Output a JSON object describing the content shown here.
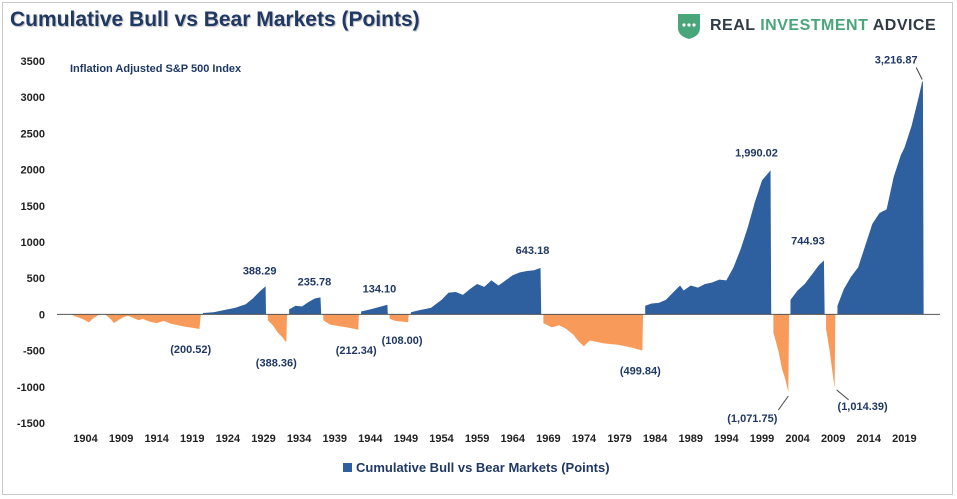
{
  "title": "Cumulative Bull vs Bear Markets (Points)",
  "brand": {
    "logo_icon": "shield-logo-icon",
    "word1": "REAL",
    "word2": "INVESTMENT",
    "word3": "ADVICE",
    "colors": {
      "dark": "#2f3b45",
      "green": "#49a57a"
    }
  },
  "legend": {
    "label": "Cumulative Bull vs Bear Markets (Points)"
  },
  "colors": {
    "bull": "#2e5f9e",
    "bear": "#f79a5a",
    "title": "#1f3864"
  },
  "chart_data": {
    "type": "area",
    "title": "Cumulative Bull vs Bear Markets (Points)",
    "subtitle": "Inflation Adjusted S&P 500 Index",
    "xlabel": "",
    "ylabel": "",
    "ylim": [
      -1500,
      3500
    ],
    "xlim": [
      1900,
      2024
    ],
    "yticks": [
      -1500,
      -1000,
      -500,
      0,
      500,
      1000,
      1500,
      2000,
      2500,
      3000,
      3500
    ],
    "xticks": [
      1904,
      1909,
      1914,
      1919,
      1924,
      1929,
      1934,
      1939,
      1944,
      1949,
      1954,
      1959,
      1964,
      1969,
      1974,
      1979,
      1984,
      1989,
      1994,
      1999,
      2004,
      2009,
      2014,
      2019
    ],
    "grid": false,
    "legend_position": "bottom",
    "series": [
      {
        "name": "Cumulative Bull vs Bear Markets (Points)",
        "points": [
          [
            1900.0,
            0
          ],
          [
            1902.0,
            0
          ],
          [
            1902.4,
            -20
          ],
          [
            1903.5,
            -60
          ],
          [
            1904.5,
            -110
          ],
          [
            1905.0,
            -60
          ],
          [
            1905.8,
            -10
          ],
          [
            1906.5,
            0
          ],
          [
            1906.8,
            -5
          ],
          [
            1907.5,
            -60
          ],
          [
            1908.0,
            -120
          ],
          [
            1908.6,
            -80
          ],
          [
            1909.3,
            -40
          ],
          [
            1910.0,
            -20
          ],
          [
            1910.7,
            -50
          ],
          [
            1911.5,
            -80
          ],
          [
            1912.0,
            -60
          ],
          [
            1913.0,
            -100
          ],
          [
            1914.0,
            -120
          ],
          [
            1915.0,
            -90
          ],
          [
            1916.0,
            -130
          ],
          [
            1917.0,
            -150
          ],
          [
            1918.0,
            -170
          ],
          [
            1919.0,
            -185
          ],
          [
            1919.9,
            -200.52
          ],
          [
            1920.0,
            -200.52
          ],
          [
            1920.2,
            0
          ],
          [
            1920.5,
            20
          ],
          [
            1922.0,
            30
          ],
          [
            1923.5,
            60
          ],
          [
            1925.0,
            90
          ],
          [
            1926.5,
            140
          ],
          [
            1927.5,
            220
          ],
          [
            1928.5,
            320
          ],
          [
            1929.3,
            388.29
          ],
          [
            1929.35,
            0
          ],
          [
            1929.6,
            -80
          ],
          [
            1930.3,
            -150
          ],
          [
            1931.0,
            -250
          ],
          [
            1931.6,
            -310
          ],
          [
            1932.2,
            -388.36
          ],
          [
            1932.3,
            0
          ],
          [
            1932.6,
            70
          ],
          [
            1933.5,
            120
          ],
          [
            1934.4,
            110
          ],
          [
            1935.3,
            170
          ],
          [
            1936.2,
            220
          ],
          [
            1937.0,
            235.78
          ],
          [
            1937.1,
            0
          ],
          [
            1937.4,
            -80
          ],
          [
            1938.3,
            -140
          ],
          [
            1939.5,
            -160
          ],
          [
            1940.7,
            -180
          ],
          [
            1941.8,
            -200
          ],
          [
            1942.3,
            -212.34
          ],
          [
            1942.4,
            0
          ],
          [
            1942.7,
            40
          ],
          [
            1944.0,
            70
          ],
          [
            1945.5,
            110
          ],
          [
            1946.4,
            134.1
          ],
          [
            1946.45,
            0
          ],
          [
            1946.7,
            -60
          ],
          [
            1947.5,
            -90
          ],
          [
            1948.5,
            -100
          ],
          [
            1949.3,
            -108
          ],
          [
            1949.4,
            0
          ],
          [
            1949.7,
            30
          ],
          [
            1951.0,
            60
          ],
          [
            1952.5,
            90
          ],
          [
            1954.0,
            200
          ],
          [
            1955.0,
            300
          ],
          [
            1956.0,
            310
          ],
          [
            1957.0,
            270
          ],
          [
            1958.0,
            350
          ],
          [
            1959.0,
            420
          ],
          [
            1960.0,
            380
          ],
          [
            1961.0,
            470
          ],
          [
            1962.0,
            400
          ],
          [
            1963.0,
            470
          ],
          [
            1964.0,
            540
          ],
          [
            1965.0,
            580
          ],
          [
            1966.0,
            600
          ],
          [
            1967.0,
            610
          ],
          [
            1967.9,
            643.18
          ],
          [
            1968.0,
            0
          ],
          [
            1968.3,
            -120
          ],
          [
            1969.5,
            -180
          ],
          [
            1970.5,
            -150
          ],
          [
            1971.5,
            -200
          ],
          [
            1972.5,
            -280
          ],
          [
            1973.3,
            -380
          ],
          [
            1974.0,
            -440
          ],
          [
            1974.8,
            -360
          ],
          [
            1975.8,
            -380
          ],
          [
            1976.8,
            -400
          ],
          [
            1977.8,
            -410
          ],
          [
            1978.8,
            -420
          ],
          [
            1979.8,
            -440
          ],
          [
            1980.8,
            -460
          ],
          [
            1981.5,
            -480
          ],
          [
            1982.2,
            -499.84
          ],
          [
            1982.3,
            0
          ],
          [
            1982.6,
            120
          ],
          [
            1983.5,
            150
          ],
          [
            1984.5,
            160
          ],
          [
            1985.5,
            200
          ],
          [
            1986.5,
            300
          ],
          [
            1987.5,
            400
          ],
          [
            1988.0,
            330
          ],
          [
            1989.0,
            400
          ],
          [
            1990.0,
            370
          ],
          [
            1991.0,
            420
          ],
          [
            1992.0,
            440
          ],
          [
            1993.0,
            480
          ],
          [
            1994.0,
            470
          ],
          [
            1995.0,
            650
          ],
          [
            1996.0,
            900
          ],
          [
            1997.0,
            1200
          ],
          [
            1998.0,
            1550
          ],
          [
            1999.0,
            1850
          ],
          [
            2000.2,
            1990.02
          ],
          [
            2000.3,
            0
          ],
          [
            2000.6,
            -250
          ],
          [
            2001.3,
            -500
          ],
          [
            2001.8,
            -750
          ],
          [
            2002.3,
            -900
          ],
          [
            2002.7,
            -1071.75
          ],
          [
            2002.8,
            0
          ],
          [
            2003.0,
            200
          ],
          [
            2004.0,
            330
          ],
          [
            2005.0,
            420
          ],
          [
            2006.0,
            550
          ],
          [
            2007.0,
            680
          ],
          [
            2007.7,
            744.93
          ],
          [
            2007.8,
            0
          ],
          [
            2008.0,
            -200
          ],
          [
            2008.5,
            -500
          ],
          [
            2008.9,
            -800
          ],
          [
            2009.2,
            -1014.39
          ],
          [
            2009.3,
            0
          ],
          [
            2009.6,
            120
          ],
          [
            2010.5,
            350
          ],
          [
            2011.5,
            520
          ],
          [
            2012.5,
            650
          ],
          [
            2013.5,
            950
          ],
          [
            2014.5,
            1250
          ],
          [
            2015.5,
            1400
          ],
          [
            2016.5,
            1450
          ],
          [
            2017.5,
            1900
          ],
          [
            2018.5,
            2200
          ],
          [
            2019.0,
            2300
          ],
          [
            2020.0,
            2600
          ],
          [
            2021.0,
            3000
          ],
          [
            2021.5,
            3216.87
          ],
          [
            2021.6,
            3216.87
          ],
          [
            2021.7,
            0
          ]
        ]
      }
    ],
    "annotations": [
      {
        "text": "388.29",
        "x": 1929.3,
        "y": 388.29
      },
      {
        "text": "235.78",
        "x": 1937.0,
        "y": 235.78
      },
      {
        "text": "134.10",
        "x": 1946.4,
        "y": 134.1
      },
      {
        "text": "643.18",
        "x": 1967.9,
        "y": 643.18
      },
      {
        "text": "1,990.02",
        "x": 2000.2,
        "y": 1990.02
      },
      {
        "text": "744.93",
        "x": 2007.7,
        "y": 744.93
      },
      {
        "text": "3,216.87",
        "x": 2021.5,
        "y": 3216.87
      },
      {
        "text": "(200.52)",
        "x": 1919.9,
        "y": -200.52
      },
      {
        "text": "(388.36)",
        "x": 1932.2,
        "y": -388.36
      },
      {
        "text": "(212.34)",
        "x": 1942.3,
        "y": -212.34
      },
      {
        "text": "(108.00)",
        "x": 1949.3,
        "y": -108.0
      },
      {
        "text": "(499.84)",
        "x": 1982.2,
        "y": -499.84
      },
      {
        "text": "(1,071.75)",
        "x": 2002.7,
        "y": -1071.75
      },
      {
        "text": "(1,014.39)",
        "x": 2009.2,
        "y": -1014.39
      }
    ]
  }
}
